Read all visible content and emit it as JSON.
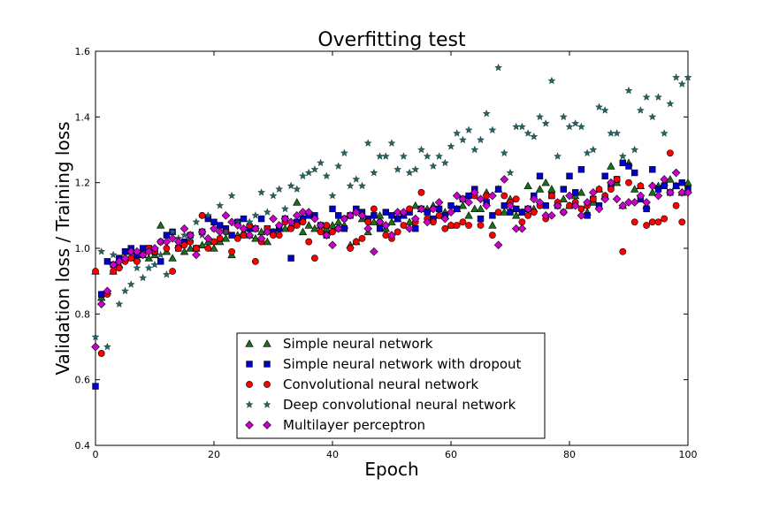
{
  "chart_data": {
    "type": "scatter",
    "title": "Overfitting test",
    "xlabel": "Epoch",
    "ylabel": "Validation loss / Training loss",
    "xlim": [
      0,
      100
    ],
    "ylim": [
      0.4,
      1.6
    ],
    "xticks": [
      "0",
      "20",
      "40",
      "60",
      "80",
      "100"
    ],
    "yticks": [
      "0.4",
      "0.6",
      "0.8",
      "1.0",
      "1.2",
      "1.4",
      "1.6"
    ],
    "grid": false,
    "legend_position": "lower-center",
    "series": [
      {
        "name": "Simple neural network",
        "marker": "triangle",
        "color": "#1a6e1a",
        "values": [
          0.93,
          0.85,
          0.87,
          0.93,
          0.95,
          0.97,
          0.99,
          0.97,
          0.98,
          0.97,
          0.98,
          1.07,
          0.99,
          0.97,
          1.01,
          0.99,
          1.0,
          1.0,
          1.01,
          1.02,
          1.0,
          1.02,
          1.03,
          0.98,
          1.04,
          1.05,
          1.04,
          1.03,
          1.05,
          1.02,
          1.05,
          1.06,
          1.06,
          1.07,
          1.14,
          1.05,
          1.07,
          1.06,
          1.07,
          1.06,
          1.07,
          1.08,
          1.07,
          1.01,
          1.02,
          1.09,
          1.05,
          1.08,
          1.1,
          1.06,
          1.08,
          1.09,
          1.1,
          1.08,
          1.13,
          1.12,
          1.12,
          1.13,
          1.1,
          1.11,
          1.07,
          1.12,
          1.13,
          1.1,
          1.12,
          1.12,
          1.17,
          1.07,
          1.18,
          1.11,
          1.15,
          1.1,
          1.11,
          1.19,
          1.12,
          1.18,
          1.2,
          1.18,
          1.14,
          1.15,
          1.13,
          1.16,
          1.17,
          1.11,
          1.14,
          1.18,
          1.16,
          1.25,
          1.2,
          1.13,
          1.26,
          1.18,
          1.19,
          1.13,
          1.17,
          1.19,
          1.2,
          1.21,
          1.19,
          1.17,
          1.2
        ]
      },
      {
        "name": "Simple neural network with dropout",
        "marker": "square",
        "color": "#0000cc",
        "values": [
          0.58,
          0.86,
          0.96,
          0.95,
          0.97,
          0.99,
          1.0,
          0.98,
          1.0,
          1.0,
          0.99,
          0.96,
          1.04,
          1.05,
          1.0,
          1.02,
          1.04,
          1.0,
          1.05,
          1.09,
          1.08,
          1.07,
          1.06,
          1.04,
          1.08,
          1.09,
          1.06,
          1.06,
          1.09,
          1.06,
          1.05,
          1.06,
          1.09,
          0.97,
          1.08,
          1.09,
          1.1,
          1.1,
          1.07,
          1.04,
          1.12,
          1.1,
          1.06,
          1.1,
          1.12,
          1.11,
          1.09,
          1.1,
          1.06,
          1.11,
          1.1,
          1.09,
          1.1,
          1.11,
          1.06,
          1.12,
          1.11,
          1.09,
          1.12,
          1.1,
          1.13,
          1.12,
          1.15,
          1.16,
          1.18,
          1.09,
          1.14,
          1.1,
          1.18,
          1.13,
          1.11,
          1.12,
          1.11,
          1.12,
          1.16,
          1.22,
          1.13,
          1.16,
          1.13,
          1.18,
          1.22,
          1.17,
          1.24,
          1.1,
          1.15,
          1.13,
          1.22,
          1.19,
          1.21,
          1.26,
          1.25,
          1.23,
          1.15,
          1.12,
          1.24,
          1.18,
          1.19,
          1.17,
          1.19,
          1.2,
          1.18
        ]
      },
      {
        "name": "Convolutional neural network",
        "marker": "circle",
        "color": "#ff0000",
        "values": [
          0.93,
          0.68,
          0.86,
          0.93,
          0.94,
          0.96,
          0.97,
          0.96,
          0.98,
          1.0,
          0.99,
          1.02,
          1.0,
          0.93,
          1.0,
          1.01,
          1.02,
          1.0,
          1.1,
          1.0,
          1.02,
          1.03,
          1.05,
          0.99,
          1.03,
          1.04,
          1.07,
          0.96,
          1.02,
          1.06,
          1.04,
          1.04,
          1.08,
          1.06,
          1.07,
          1.08,
          1.02,
          0.97,
          1.05,
          1.07,
          1.05,
          1.06,
          1.09,
          1.0,
          1.02,
          1.03,
          1.08,
          1.12,
          1.08,
          1.04,
          1.03,
          1.05,
          1.07,
          1.12,
          1.08,
          1.17,
          1.09,
          1.08,
          1.1,
          1.06,
          1.07,
          1.07,
          1.08,
          1.07,
          1.16,
          1.07,
          1.16,
          1.04,
          1.11,
          1.16,
          1.14,
          1.15,
          1.08,
          1.1,
          1.11,
          1.13,
          1.09,
          1.16,
          1.14,
          1.11,
          1.13,
          1.14,
          1.12,
          1.13,
          1.15,
          1.18,
          1.16,
          1.18,
          1.21,
          0.99,
          1.2,
          1.08,
          1.19,
          1.07,
          1.08,
          1.08,
          1.09,
          1.29,
          1.13,
          1.08
        ]
      },
      {
        "name": "Deep convolutional neural network",
        "marker": "star",
        "color": "#1f6666",
        "values": [
          0.73,
          0.99,
          0.7,
          0.98,
          0.83,
          0.87,
          0.89,
          0.94,
          0.91,
          0.94,
          0.95,
          0.98,
          0.92,
          1.05,
          1.03,
          1.04,
          1.03,
          1.08,
          1.04,
          1.1,
          1.06,
          1.13,
          1.05,
          1.16,
          1.08,
          1.06,
          1.08,
          1.1,
          1.17,
          1.11,
          1.16,
          1.18,
          1.12,
          1.19,
          1.18,
          1.22,
          1.23,
          1.24,
          1.26,
          1.22,
          1.16,
          1.25,
          1.29,
          1.19,
          1.21,
          1.19,
          1.32,
          1.23,
          1.28,
          1.28,
          1.32,
          1.24,
          1.28,
          1.23,
          1.24,
          1.3,
          1.28,
          1.25,
          1.28,
          1.26,
          1.31,
          1.35,
          1.33,
          1.36,
          1.3,
          1.33,
          1.41,
          1.36,
          1.55,
          1.29,
          1.23,
          1.37,
          1.37,
          1.35,
          1.34,
          1.4,
          1.38,
          1.51,
          1.28,
          1.4,
          1.37,
          1.38,
          1.37,
          1.29,
          1.3,
          1.43,
          1.42,
          1.35,
          1.35,
          1.28,
          1.48,
          1.3,
          1.42,
          1.46,
          1.4,
          1.46,
          1.35,
          1.44,
          1.52,
          1.5,
          1.52
        ]
      },
      {
        "name": "Multilayer perceptron",
        "marker": "diamond",
        "color": "#cc00cc",
        "values": [
          0.7,
          0.83,
          0.87,
          0.95,
          0.96,
          0.97,
          0.99,
          0.99,
          0.98,
          0.99,
          1.0,
          1.02,
          1.02,
          1.03,
          1.02,
          1.06,
          1.04,
          0.98,
          1.05,
          1.03,
          1.06,
          1.05,
          1.1,
          1.08,
          1.07,
          1.06,
          1.04,
          1.06,
          1.03,
          1.05,
          1.09,
          1.07,
          1.09,
          1.08,
          1.1,
          1.11,
          1.11,
          1.09,
          1.07,
          1.04,
          1.01,
          1.06,
          1.09,
          1.1,
          1.11,
          1.1,
          1.06,
          0.99,
          1.08,
          1.07,
          1.04,
          1.11,
          1.11,
          1.06,
          1.09,
          1.12,
          1.08,
          1.12,
          1.14,
          1.09,
          1.11,
          1.16,
          1.15,
          1.14,
          1.17,
          1.15,
          1.13,
          1.16,
          1.01,
          1.21,
          1.13,
          1.06,
          1.06,
          1.12,
          1.15,
          1.14,
          1.1,
          1.1,
          1.13,
          1.11,
          1.16,
          1.13,
          1.1,
          1.14,
          1.17,
          1.12,
          1.15,
          1.2,
          1.15,
          1.13,
          1.14,
          1.14,
          1.16,
          1.14,
          1.19,
          1.16,
          1.21,
          1.17,
          1.23,
          1.17,
          1.17
        ]
      }
    ]
  }
}
